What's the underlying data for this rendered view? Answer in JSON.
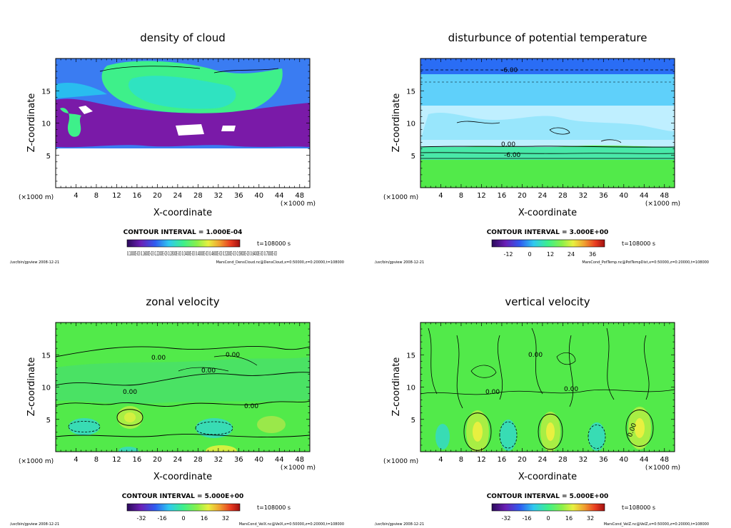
{
  "chart_data": [
    {
      "type": "heatmap",
      "title": "density of cloud",
      "xlabel": "X-coordinate",
      "ylabel": "Z-coordinate",
      "x_unit_left": "(×1000 m)",
      "x_unit_right": "(×1000 m)",
      "xlim": [
        0,
        50
      ],
      "ylim": [
        0,
        20
      ],
      "x_ticks": [
        4,
        8,
        12,
        16,
        20,
        24,
        28,
        32,
        36,
        40,
        44,
        48
      ],
      "y_ticks": [
        5,
        10,
        15
      ],
      "fill_range_z": [
        6,
        20
      ],
      "contour_labels": [],
      "contour_interval": "CONTOUR INTERVAL = 1.000E-04",
      "time_label": "t=108000 s",
      "colorbar_labels": "0.1000E-03  0.1600E-03  0.2200E-03  0.2800E-03  0.3400E-03  0.4000E-03  0.4600E-03  0.5200E-03  0.5800E-03  0.6400E-03  0.7000E-03",
      "footer_left": "/usr/bin/gpview  2008-12-21",
      "footer_right": "MarsCond_DensCloud.nc@DensCloud,x=0:50000,z=0:20000,t=108000"
    },
    {
      "type": "heatmap",
      "title": "disturbunce of potential temperature",
      "xlabel": "X-coordinate",
      "ylabel": "Z-coordinate",
      "x_unit_left": "(×1000 m)",
      "x_unit_right": "(×1000 m)",
      "xlim": [
        0,
        50
      ],
      "ylim": [
        0,
        20
      ],
      "x_ticks": [
        4,
        8,
        12,
        16,
        20,
        24,
        28,
        32,
        36,
        40,
        44,
        48
      ],
      "y_ticks": [
        5,
        10,
        15
      ],
      "contour_labels": [
        "-6.00",
        "0.00",
        "-6.00"
      ],
      "contour_interval": "CONTOUR INTERVAL = 3.000E+00",
      "time_label": "t=108000 s",
      "colorbar_labels": [
        "-12",
        "0",
        "12",
        "24",
        "36"
      ],
      "footer_left": "/usr/bin/gpview  2008-12-21",
      "footer_right": "MarsCond_PotTemp.nc@PotTempDist,x=0:50000,z=0:20000,t=108000"
    },
    {
      "type": "heatmap",
      "title": "zonal velocity",
      "xlabel": "X-coordinate",
      "ylabel": "Z-coordinate",
      "x_unit_left": "(×1000 m)",
      "x_unit_right": "(×1000 m)",
      "xlim": [
        0,
        50
      ],
      "ylim": [
        0,
        20
      ],
      "x_ticks": [
        4,
        8,
        12,
        16,
        20,
        24,
        28,
        32,
        36,
        40,
        44,
        48
      ],
      "y_ticks": [
        5,
        10,
        15
      ],
      "contour_labels": [
        "0.00",
        "0.00",
        "0.00",
        "0.00",
        "0.00"
      ],
      "contour_interval": "CONTOUR INTERVAL = 5.000E+00",
      "time_label": "t=108000 s",
      "colorbar_labels": [
        "-32",
        "-16",
        "0",
        "16",
        "32"
      ],
      "footer_left": "/usr/bin/gpview  2008-12-21",
      "footer_right": "MarsCond_VelX.nc@VelX,x=0:50000,z=0:20000,t=108000"
    },
    {
      "type": "heatmap",
      "title": "vertical velocity",
      "xlabel": "X-coordinate",
      "ylabel": "Z-coordinate",
      "x_unit_left": "(×1000 m)",
      "x_unit_right": "(×1000 m)",
      "xlim": [
        0,
        50
      ],
      "ylim": [
        0,
        20
      ],
      "x_ticks": [
        4,
        8,
        12,
        16,
        20,
        24,
        28,
        32,
        36,
        40,
        44,
        48
      ],
      "y_ticks": [
        5,
        10,
        15
      ],
      "contour_labels": [
        "0.00",
        "0.00",
        "0.00",
        "0.00"
      ],
      "contour_interval": "CONTOUR INTERVAL = 5.000E+00",
      "time_label": "t=108000 s",
      "colorbar_labels": [
        "-32",
        "-16",
        "0",
        "16",
        "32"
      ],
      "footer_left": "/usr/bin/gpview  2008-12-21",
      "footer_right": "MarsCond_VelZ.nc@VelZ,x=0:50000,z=0:20000,t=108000"
    }
  ],
  "colors": {
    "cloud_purple": "#7a1aa8",
    "cloud_blue": "#3a7cf2",
    "cloud_cyan": "#22d8ee",
    "cloud_green": "#3ef08a",
    "temp_top": "#2a6df5",
    "temp_sky": "#5fd0fa",
    "temp_light": "#bfefff",
    "temp_teal": "#49e8a8",
    "field_green": "#52ea4a",
    "field_yellow": "#d4f040",
    "field_cyan": "#38dcb4"
  }
}
